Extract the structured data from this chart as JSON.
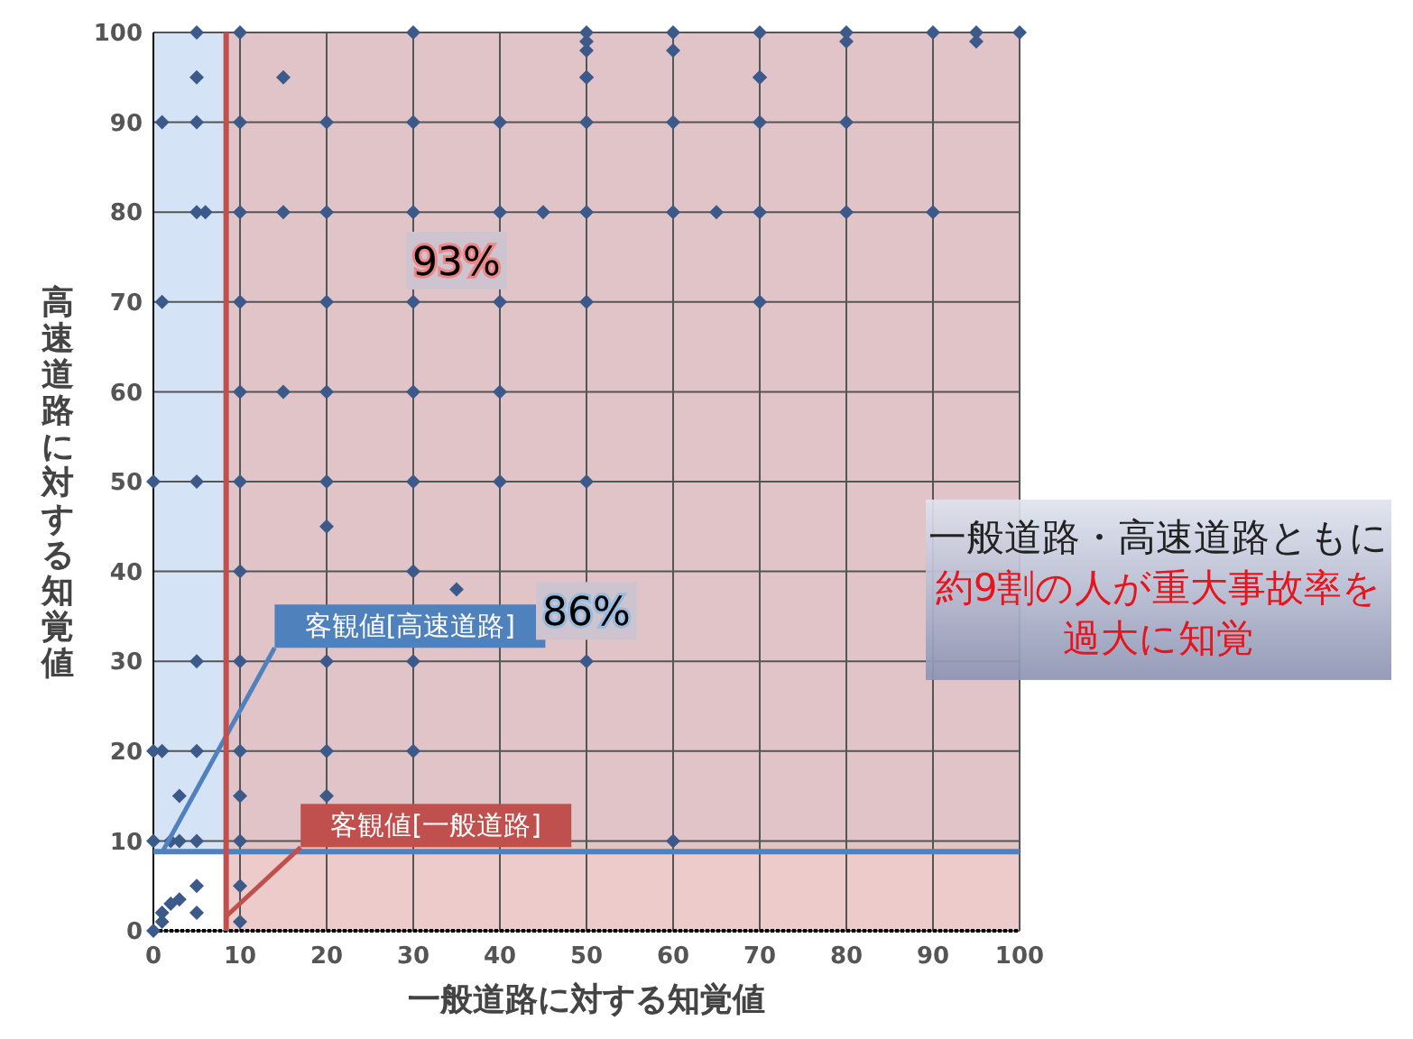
{
  "chart_data": {
    "type": "scatter",
    "xlabel": "一般道路に対する知覚値",
    "ylabel": "高速道路に対する知覚値",
    "xlim": [
      0,
      100
    ],
    "ylim": [
      0,
      100
    ],
    "xticks": [
      0,
      10,
      20,
      30,
      40,
      50,
      60,
      70,
      80,
      90,
      100
    ],
    "yticks": [
      0,
      10,
      20,
      30,
      40,
      50,
      60,
      70,
      80,
      90,
      100
    ],
    "grid": true,
    "marker": "diamond",
    "series": [
      {
        "color": "#3b5a8a",
        "x": [
          5,
          10,
          30,
          50,
          50,
          50,
          50,
          60,
          60,
          70,
          70,
          80,
          80,
          90,
          95,
          95,
          100,
          5,
          15,
          50,
          70,
          1,
          5,
          10,
          20,
          30,
          40,
          50,
          60,
          70,
          80,
          5,
          6,
          10,
          15,
          20,
          30,
          40,
          45,
          50,
          60,
          65,
          70,
          80,
          90,
          1,
          10,
          20,
          30,
          40,
          50,
          70,
          10,
          15,
          20,
          30,
          40,
          0,
          5,
          10,
          20,
          30,
          40,
          50,
          10,
          20,
          30,
          35,
          5,
          10,
          20,
          30,
          50,
          0,
          1,
          5,
          10,
          20,
          30,
          3,
          10,
          20,
          0,
          2,
          3,
          5,
          10,
          60,
          5,
          10,
          5,
          0,
          1,
          1,
          2,
          3,
          10
        ],
        "values": [
          100,
          100,
          100,
          100,
          99,
          98,
          95,
          100,
          98,
          100,
          95,
          100,
          99,
          100,
          100,
          99,
          100,
          95,
          95,
          95,
          95,
          90,
          90,
          90,
          90,
          90,
          90,
          90,
          90,
          90,
          90,
          80,
          80,
          80,
          80,
          80,
          80,
          80,
          80,
          80,
          80,
          80,
          80,
          80,
          80,
          70,
          70,
          70,
          70,
          70,
          70,
          70,
          60,
          60,
          60,
          60,
          60,
          50,
          50,
          50,
          50,
          50,
          50,
          50,
          40,
          45,
          40,
          38,
          30,
          30,
          30,
          30,
          30,
          20,
          20,
          20,
          20,
          20,
          20,
          15,
          15,
          15,
          10,
          10,
          10,
          10,
          10,
          10,
          5,
          5,
          2,
          0,
          1,
          2,
          3,
          3.5,
          1
        ]
      }
    ],
    "ref_lines": [
      {
        "axis": "y",
        "value": 8.8,
        "label": "客観値[高速道路]",
        "color": "#4f81bd"
      },
      {
        "axis": "x",
        "value": 8.4,
        "label": "客観値[一般道路]",
        "color": "#c0504d"
      }
    ],
    "bands": [
      {
        "axis": "y",
        "from": 8.8,
        "to": 100,
        "color": "#c6d9f1"
      },
      {
        "axis": "x",
        "from": 8.4,
        "to": 100,
        "color": "#e6b9b8"
      }
    ],
    "annotations": [
      "93%",
      "86%",
      "一般道路・高速道路ともに",
      "約9割の人が重大事故率を",
      "過大に知覚"
    ]
  }
}
